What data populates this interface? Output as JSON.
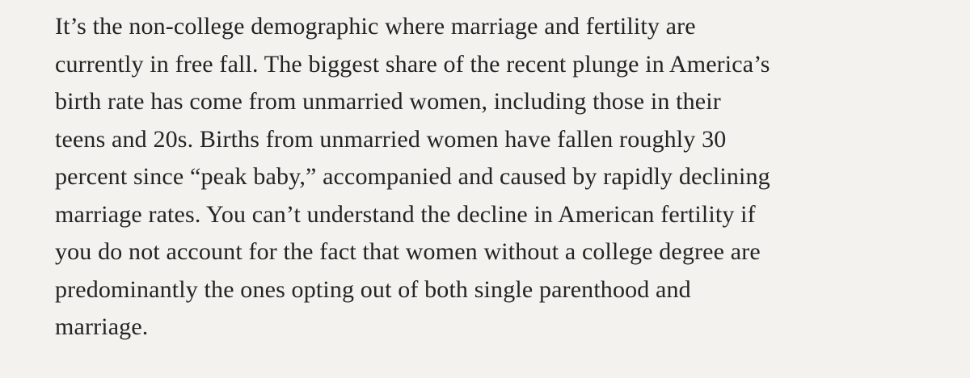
{
  "paragraph": {
    "lines": [
      "It’s the non-college demographic where marriage and fertility are",
      "currently in free fall. The biggest share of the recent plunge in America’s",
      "birth rate has come from unmarried women, including those in their",
      "teens and 20s. Births from unmarried women have fallen roughly 30",
      "percent since “peak baby,” accompanied and caused by rapidly declining",
      "marriage rates. You can’t understand the decline in American fertility if",
      "you do not account for the fact that women without a college degree are",
      "predominantly the ones opting out of both single parenthood and",
      "marriage."
    ]
  }
}
